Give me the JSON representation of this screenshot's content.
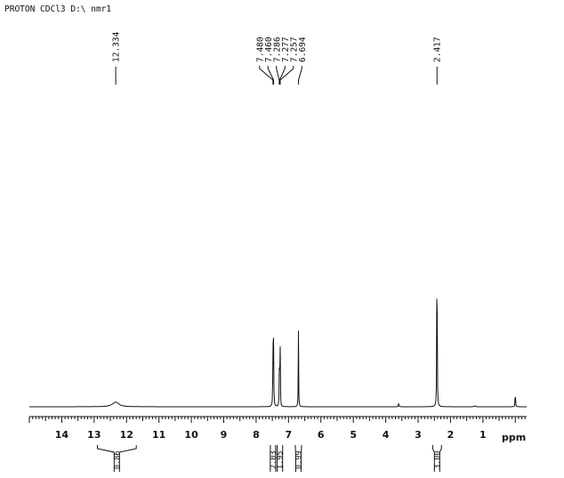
{
  "chart_data": {
    "type": "line",
    "title": "PROTON CDCl3 D:\\ nmr1",
    "xlabel": "ppm",
    "ylabel": "",
    "xlim": [
      15.0,
      -0.35
    ],
    "x_axis_reversed": true,
    "x_ticks": [
      14,
      13,
      12,
      11,
      10,
      9,
      8,
      7,
      6,
      5,
      4,
      3,
      2,
      1
    ],
    "grid": false,
    "peaks": [
      {
        "ppm": 12.334,
        "height": 0.02,
        "width": 0.12
      },
      {
        "ppm": 7.48,
        "height": 0.34,
        "width": 0.006
      },
      {
        "ppm": 7.46,
        "height": 0.3,
        "width": 0.006
      },
      {
        "ppm": 7.286,
        "height": 0.05,
        "width": 0.006
      },
      {
        "ppm": 7.277,
        "height": 0.26,
        "width": 0.006
      },
      {
        "ppm": 7.257,
        "height": 0.24,
        "width": 0.006
      },
      {
        "ppm": 6.694,
        "height": 0.33,
        "width": 0.006
      },
      {
        "ppm": 3.6,
        "height": 0.015,
        "width": 0.01
      },
      {
        "ppm": 2.417,
        "height": 1.0,
        "width": 0.006
      },
      {
        "ppm": 1.25,
        "height": 0.004,
        "width": 0.02
      },
      {
        "ppm": 0.0,
        "height": 0.09,
        "width": 0.006
      }
    ],
    "peak_labels": [
      {
        "label": "12.334",
        "ppm": 12.334
      },
      {
        "label": "7.480",
        "ppm": 7.48
      },
      {
        "label": "7.460",
        "ppm": 7.46
      },
      {
        "label": "7.286",
        "ppm": 7.286
      },
      {
        "label": "7.277",
        "ppm": 7.277
      },
      {
        "label": "7.257",
        "ppm": 7.257
      },
      {
        "label": "6.694",
        "ppm": 6.694
      },
      {
        "label": "2.417",
        "ppm": 2.417
      }
    ],
    "integrals": [
      {
        "value": "0.86",
        "from": 12.9,
        "to": 11.7
      },
      {
        "value": "2.03",
        "from": 7.56,
        "to": 7.4
      },
      {
        "value": "1.95",
        "from": 7.35,
        "to": 7.18
      },
      {
        "value": "0.99",
        "from": 6.79,
        "to": 6.6
      },
      {
        "value": "3.00",
        "from": 2.55,
        "to": 2.28
      }
    ]
  }
}
